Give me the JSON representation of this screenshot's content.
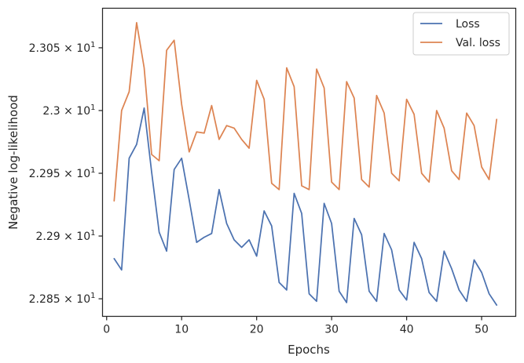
{
  "chart_data": {
    "type": "line",
    "xlabel": "Epochs",
    "ylabel": "Negative log-likelihood",
    "xlim": [
      -0.55,
      54.55
    ],
    "ylim": [
      22.836,
      23.0815
    ],
    "xticks": [
      0,
      10,
      20,
      30,
      40,
      50
    ],
    "yticks": [
      {
        "value": 22.85,
        "mantissa": "2.285",
        "base": "10",
        "exp": "1"
      },
      {
        "value": 22.9,
        "mantissa": "2.29",
        "base": "10",
        "exp": "1"
      },
      {
        "value": 22.95,
        "mantissa": "2.295",
        "base": "10",
        "exp": "1"
      },
      {
        "value": 23.0,
        "mantissa": "2.3",
        "base": "10",
        "exp": "1"
      },
      {
        "value": 23.05,
        "mantissa": "2.305",
        "base": "10",
        "exp": "1"
      }
    ],
    "grid": false,
    "legend_position": "top-right",
    "x": [
      1,
      2,
      3,
      4,
      5,
      6,
      7,
      8,
      9,
      10,
      11,
      12,
      13,
      14,
      15,
      16,
      17,
      18,
      19,
      20,
      21,
      22,
      23,
      24,
      25,
      26,
      27,
      28,
      29,
      30,
      31,
      32,
      33,
      34,
      35,
      36,
      37,
      38,
      39,
      40,
      41,
      42,
      43,
      44,
      45,
      46,
      47,
      48,
      49,
      50,
      51,
      52
    ],
    "series": [
      {
        "name": "Loss",
        "color": "#4c72b0",
        "values": [
          22.882,
          22.873,
          22.962,
          22.973,
          23.002,
          22.951,
          22.903,
          22.888,
          22.953,
          22.962,
          22.929,
          22.895,
          22.899,
          22.902,
          22.937,
          22.91,
          22.897,
          22.891,
          22.897,
          22.884,
          22.92,
          22.908,
          22.863,
          22.857,
          22.934,
          22.918,
          22.854,
          22.848,
          22.926,
          22.91,
          22.856,
          22.847,
          22.914,
          22.901,
          22.856,
          22.848,
          22.902,
          22.889,
          22.857,
          22.849,
          22.895,
          22.882,
          22.855,
          22.848,
          22.888,
          22.874,
          22.857,
          22.848,
          22.881,
          22.871,
          22.854,
          22.845
        ]
      },
      {
        "name": "Val. loss",
        "color": "#dd8452",
        "values": [
          22.928,
          23.0,
          23.015,
          23.07,
          23.034,
          22.965,
          22.96,
          23.048,
          23.056,
          23.005,
          22.967,
          22.983,
          22.982,
          23.004,
          22.977,
          22.988,
          22.986,
          22.977,
          22.97,
          23.024,
          23.009,
          22.942,
          22.937,
          23.034,
          23.019,
          22.94,
          22.937,
          23.033,
          23.018,
          22.943,
          22.937,
          23.023,
          23.01,
          22.945,
          22.939,
          23.012,
          22.998,
          22.95,
          22.944,
          23.009,
          22.997,
          22.95,
          22.943,
          23.0,
          22.986,
          22.952,
          22.945,
          22.998,
          22.988,
          22.955,
          22.945,
          22.993
        ]
      }
    ]
  }
}
